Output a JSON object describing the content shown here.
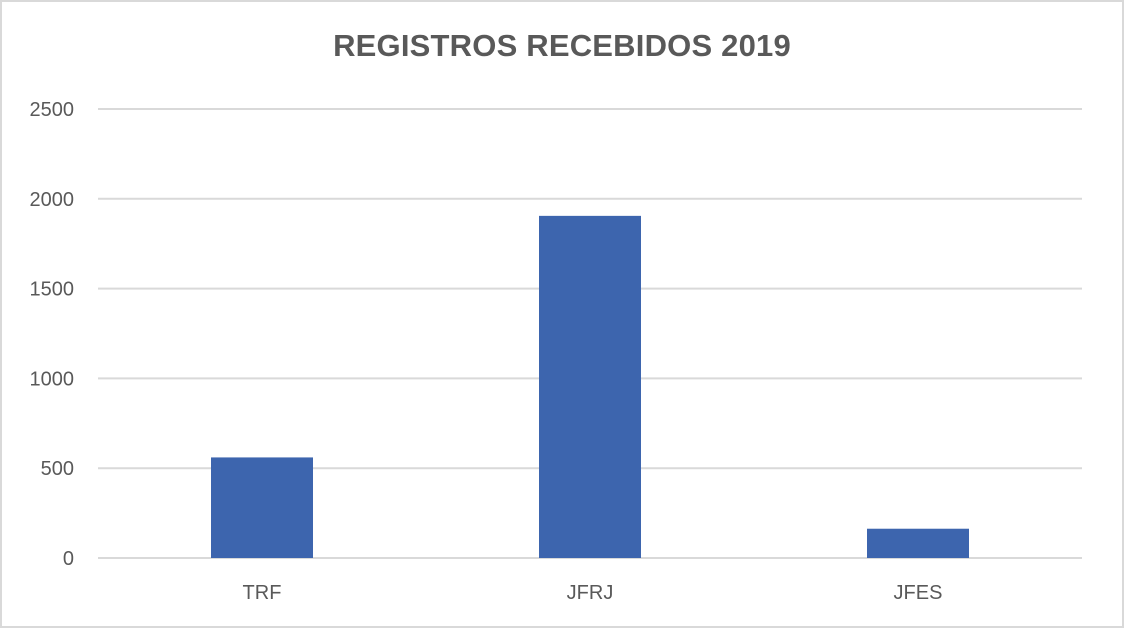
{
  "chart_data": {
    "type": "bar",
    "title": "REGISTROS RECEBIDOS 2019",
    "xlabel": "",
    "ylabel": "",
    "categories": [
      "TRF",
      "JFRJ",
      "JFES"
    ],
    "values": [
      560,
      1905,
      163
    ],
    "ylim": [
      0,
      2500
    ],
    "yticks": [
      "0",
      "500",
      "1000",
      "1500",
      "2000",
      "2500"
    ],
    "grid": true,
    "legend": "none"
  },
  "colors": {
    "bar": "#3d65ae",
    "grid": "#d9d9d9",
    "text": "#595959"
  }
}
